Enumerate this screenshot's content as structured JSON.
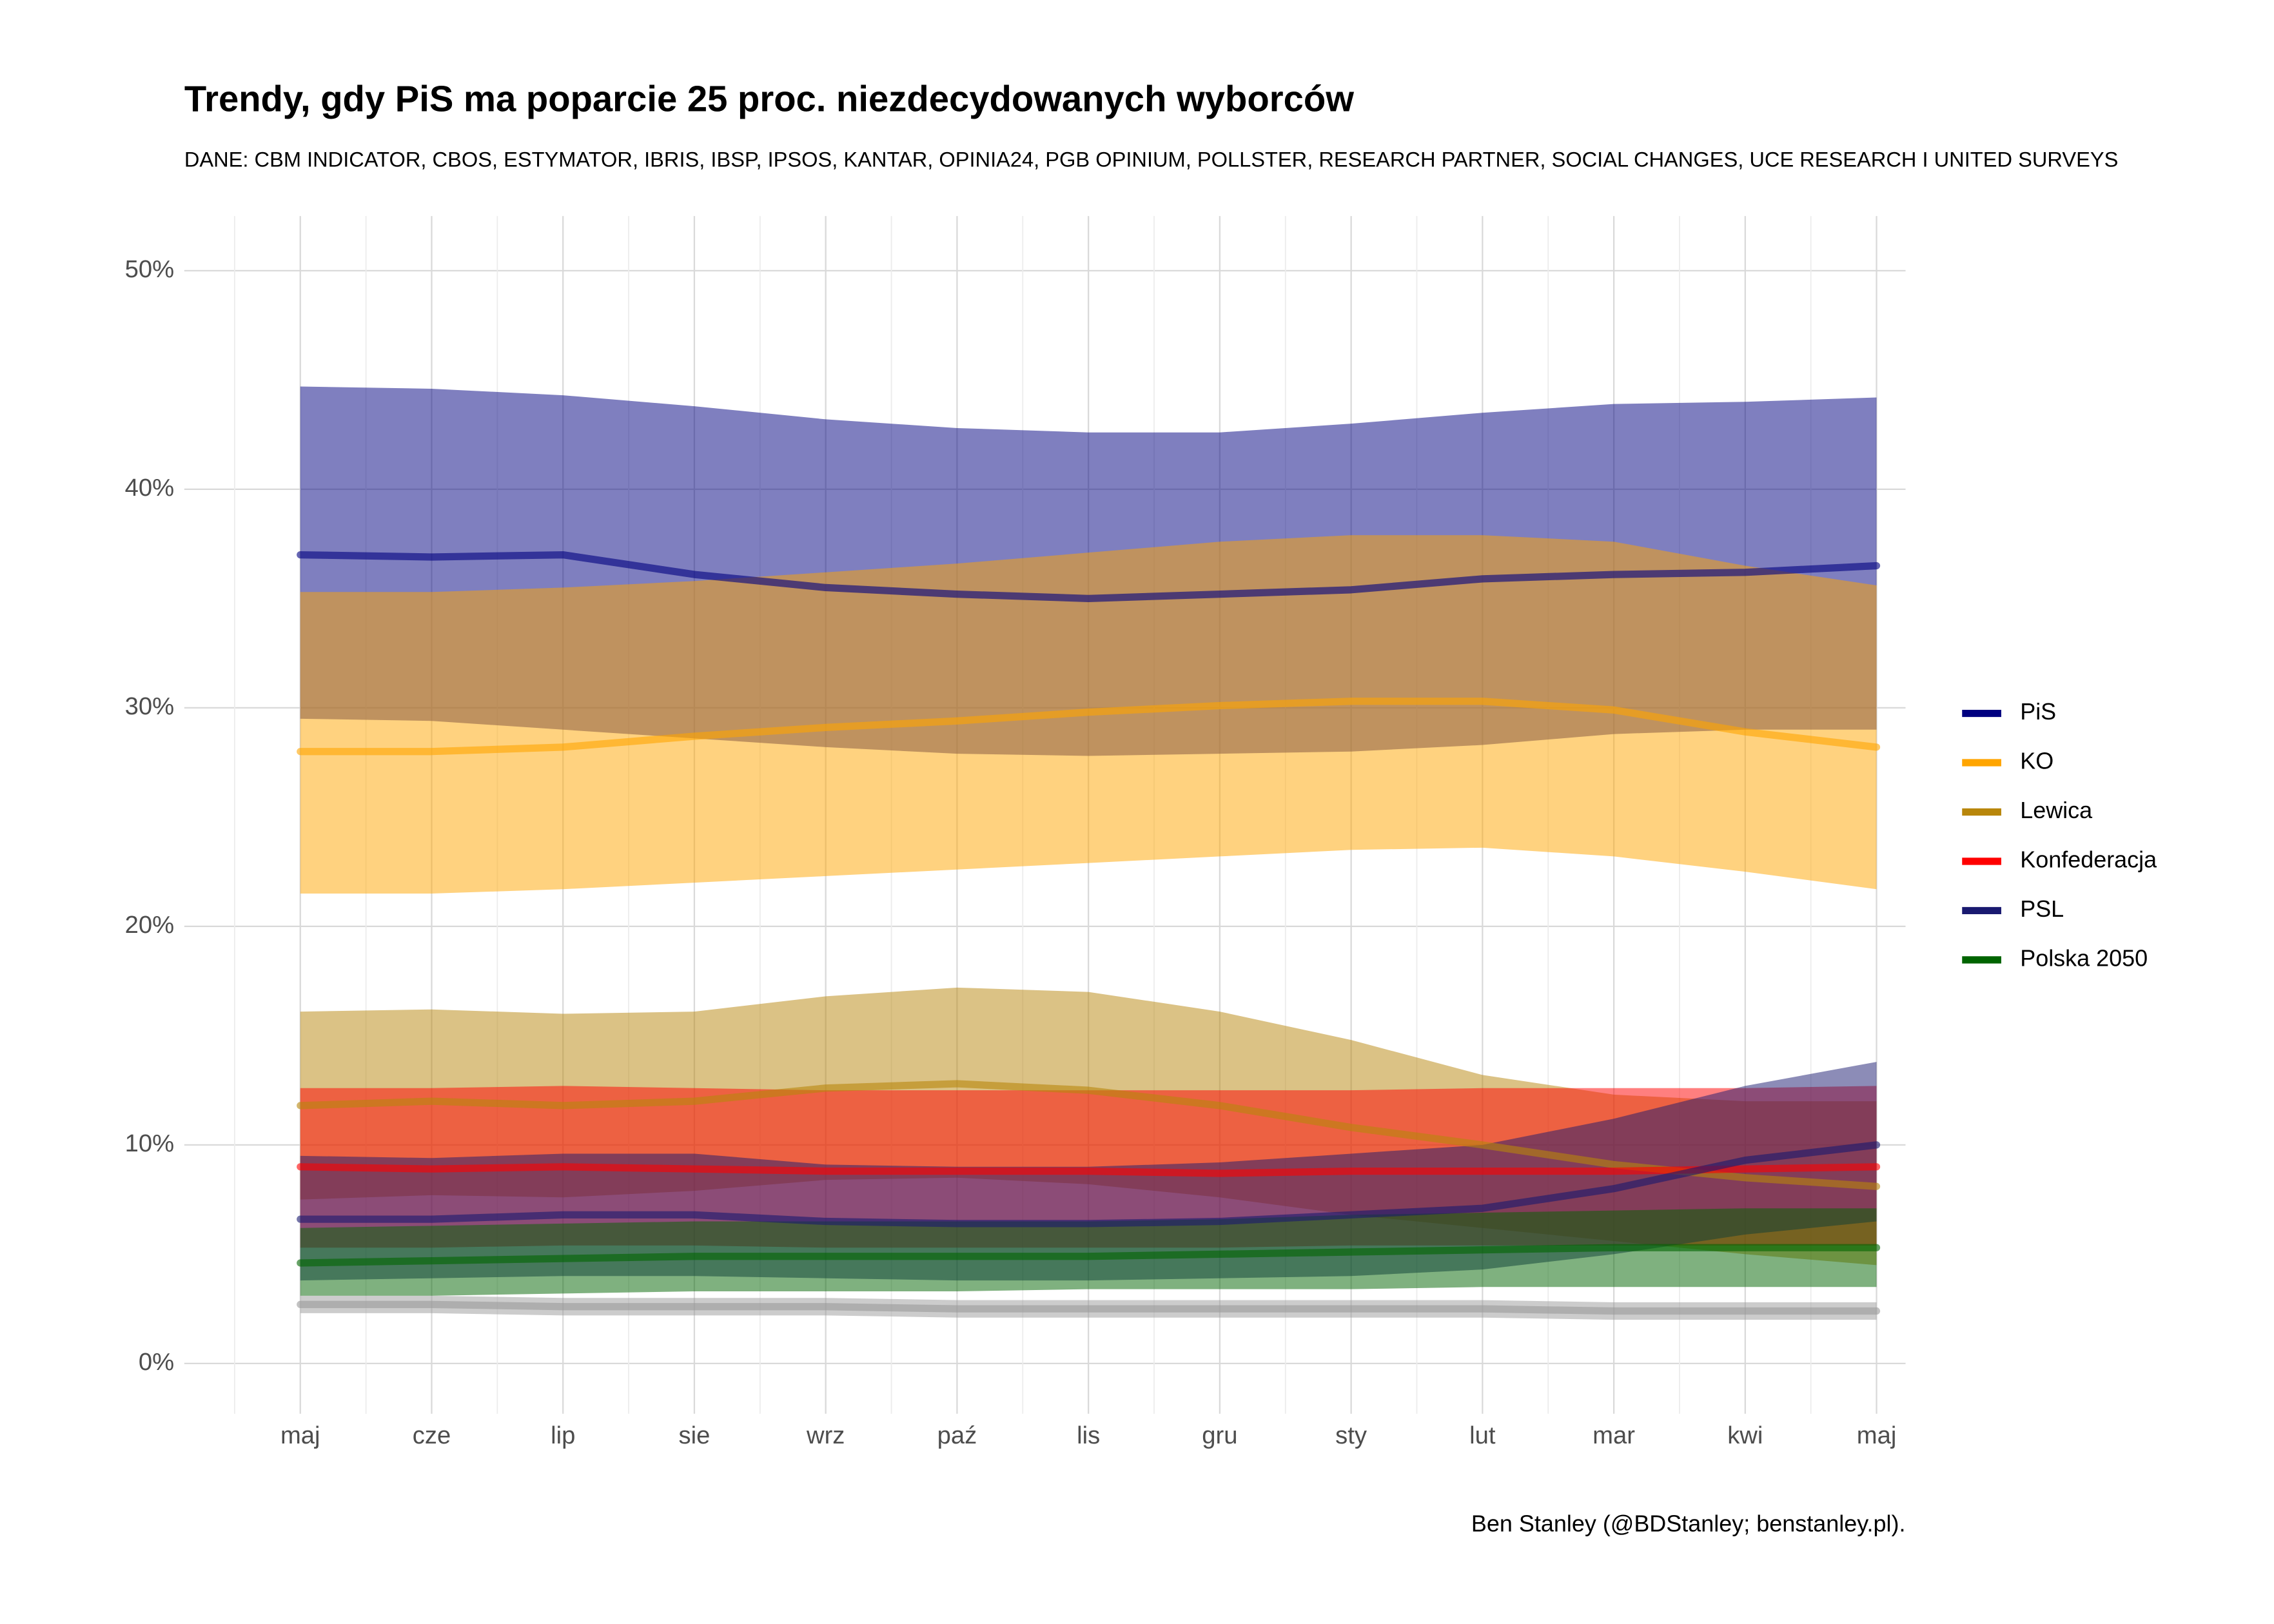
{
  "chart_data": {
    "type": "line",
    "title": "Trendy, gdy PiS ma poparcie 25 proc. niezdecydowanych wyborców",
    "subtitle": "DANE: CBM INDICATOR, CBOS, ESTYMATOR, IBRIS, IBSP, IPSOS, KANTAR, OPINIA24, PGB OPINIUM, POLLSTER, RESEARCH PARTNER, SOCIAL CHANGES, UCE RESEARCH I UNITED SURVEYS",
    "caption": "Ben Stanley (@BDStanley; benstanley.pl).",
    "categories": [
      "maj",
      "cze",
      "lip",
      "sie",
      "wrz",
      "paź",
      "lis",
      "gru",
      "sty",
      "lut",
      "mar",
      "kwi",
      "maj"
    ],
    "ylim": [
      -2.3,
      52.5
    ],
    "yticks": [
      {
        "value": 0,
        "label": "0%"
      },
      {
        "value": 10,
        "label": "10%"
      },
      {
        "value": 20,
        "label": "20%"
      },
      {
        "value": 30,
        "label": "30%"
      },
      {
        "value": 40,
        "label": "40%"
      },
      {
        "value": 50,
        "label": "50%"
      }
    ],
    "grid": true,
    "legend": "right",
    "series": [
      {
        "name": "PiS",
        "color": "#000080",
        "values": [
          37.0,
          36.9,
          37.0,
          36.1,
          35.5,
          35.2,
          35.0,
          35.2,
          35.4,
          35.9,
          36.1,
          36.2,
          36.5
        ],
        "lower": [
          29.5,
          29.4,
          29.0,
          28.6,
          28.2,
          27.9,
          27.8,
          27.9,
          28.0,
          28.3,
          28.8,
          29.0,
          29.0
        ],
        "upper": [
          44.7,
          44.6,
          44.3,
          43.8,
          43.2,
          42.8,
          42.6,
          42.6,
          43.0,
          43.5,
          43.9,
          44.0,
          44.2
        ]
      },
      {
        "name": "KO",
        "color": "#FFA500",
        "values": [
          28.0,
          28.0,
          28.2,
          28.7,
          29.1,
          29.4,
          29.8,
          30.1,
          30.3,
          30.3,
          29.9,
          28.9,
          28.2
        ],
        "lower": [
          21.5,
          21.5,
          21.7,
          22.0,
          22.3,
          22.6,
          22.9,
          23.2,
          23.5,
          23.6,
          23.2,
          22.5,
          21.7
        ],
        "upper": [
          35.3,
          35.3,
          35.5,
          35.8,
          36.2,
          36.6,
          37.1,
          37.6,
          37.9,
          37.9,
          37.6,
          36.5,
          35.6
        ]
      },
      {
        "name": "Lewica",
        "color": "#B8860B",
        "values": [
          11.8,
          12.0,
          11.8,
          12.0,
          12.6,
          12.8,
          12.5,
          11.8,
          10.8,
          10.0,
          9.1,
          8.5,
          8.1
        ],
        "lower": [
          7.5,
          7.7,
          7.6,
          7.9,
          8.4,
          8.5,
          8.2,
          7.6,
          6.8,
          6.2,
          5.6,
          5.0,
          4.5
        ],
        "upper": [
          16.1,
          16.2,
          16.0,
          16.1,
          16.8,
          17.2,
          17.0,
          16.1,
          14.8,
          13.2,
          12.3,
          12.0,
          12.0
        ]
      },
      {
        "name": "Konfederacja",
        "color": "#FF0000",
        "values": [
          9.0,
          8.9,
          9.0,
          8.9,
          8.8,
          8.8,
          8.8,
          8.7,
          8.8,
          8.8,
          8.8,
          8.9,
          9.0
        ],
        "lower": [
          5.3,
          5.3,
          5.4,
          5.4,
          5.3,
          5.3,
          5.3,
          5.3,
          5.4,
          5.4,
          5.4,
          5.4,
          5.4
        ],
        "upper": [
          12.6,
          12.6,
          12.7,
          12.6,
          12.5,
          12.5,
          12.5,
          12.5,
          12.5,
          12.6,
          12.6,
          12.6,
          12.7
        ]
      },
      {
        "name": "PSL",
        "color": "#191970",
        "values": [
          6.6,
          6.6,
          6.8,
          6.8,
          6.5,
          6.4,
          6.4,
          6.5,
          6.8,
          7.1,
          8.0,
          9.3,
          10.0
        ],
        "lower": [
          3.8,
          3.9,
          4.0,
          4.0,
          3.9,
          3.8,
          3.8,
          3.9,
          4.0,
          4.3,
          5.0,
          5.9,
          6.5
        ],
        "upper": [
          9.5,
          9.4,
          9.6,
          9.6,
          9.1,
          9.0,
          9.0,
          9.2,
          9.6,
          10.0,
          11.2,
          12.7,
          13.8
        ]
      },
      {
        "name": "Polska 2050",
        "color": "#006400",
        "values": [
          4.6,
          4.7,
          4.8,
          4.9,
          4.9,
          4.9,
          4.9,
          5.0,
          5.1,
          5.2,
          5.3,
          5.3,
          5.3
        ],
        "lower": [
          3.1,
          3.1,
          3.2,
          3.3,
          3.3,
          3.3,
          3.4,
          3.4,
          3.4,
          3.5,
          3.5,
          3.5,
          3.5
        ],
        "upper": [
          6.2,
          6.3,
          6.4,
          6.5,
          6.5,
          6.5,
          6.5,
          6.6,
          6.8,
          6.9,
          7.0,
          7.1,
          7.1
        ]
      },
      {
        "color": "#999999",
        "values": [
          2.7,
          2.7,
          2.6,
          2.6,
          2.6,
          2.5,
          2.5,
          2.5,
          2.5,
          2.5,
          2.4,
          2.4,
          2.4
        ],
        "lower": [
          2.3,
          2.3,
          2.2,
          2.2,
          2.2,
          2.1,
          2.1,
          2.1,
          2.1,
          2.1,
          2.0,
          2.0,
          2.0
        ],
        "upper": [
          3.1,
          3.1,
          3.0,
          3.0,
          3.0,
          2.9,
          2.9,
          2.9,
          2.9,
          2.9,
          2.8,
          2.8,
          2.8
        ]
      }
    ]
  }
}
